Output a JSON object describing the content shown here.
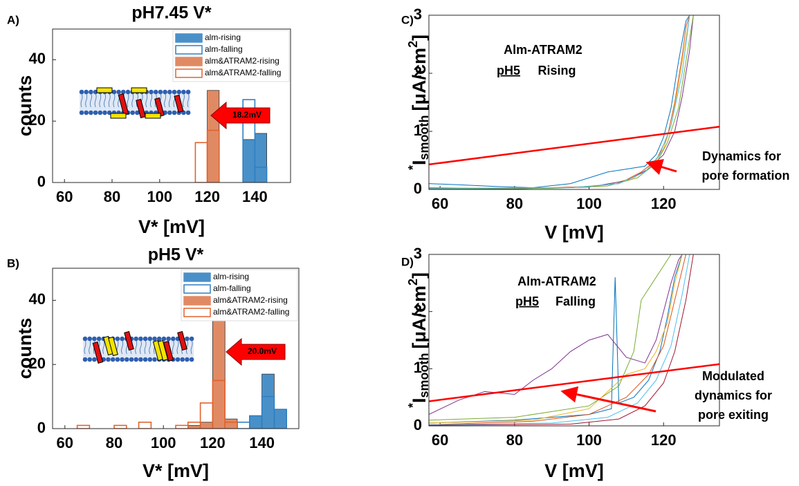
{
  "chart_data": [
    {
      "type": "histogram",
      "panel_label": "A)",
      "title": "pH7.45 V*",
      "xlabel": "V* [mV]",
      "ylabel": "counts",
      "bins": [
        60,
        65,
        70,
        75,
        80,
        85,
        90,
        95,
        100,
        105,
        110,
        115,
        120,
        125,
        130,
        135,
        140,
        145,
        150
      ],
      "xlim": [
        55,
        155
      ],
      "ylim": [
        0,
        50
      ],
      "xticks": [
        60,
        80,
        100,
        120,
        140
      ],
      "yticks": [
        0,
        20,
        40
      ],
      "legend": "top-right",
      "series": [
        {
          "name": "alm-rising",
          "color": "#4a90c8",
          "filled": true,
          "values": [
            0,
            0,
            0,
            0,
            0,
            0,
            0,
            0,
            0,
            0,
            0,
            0,
            0,
            0,
            0,
            14,
            16,
            0
          ]
        },
        {
          "name": "alm-falling",
          "color": "#2f7fc1",
          "filled": false,
          "values": [
            0,
            0,
            0,
            0,
            0,
            0,
            0,
            0,
            0,
            0,
            0,
            0,
            0,
            0,
            0,
            27,
            5,
            0
          ]
        },
        {
          "name": "alm&ATRAM2-rising",
          "color": "#e08a64",
          "filled": true,
          "values": [
            0,
            0,
            0,
            0,
            0,
            0,
            0,
            0,
            0,
            0,
            0,
            0,
            30,
            0,
            0,
            0,
            0,
            0
          ]
        },
        {
          "name": "alm&ATRAM2-falling",
          "color": "#e0622c",
          "filled": false,
          "values": [
            0,
            0,
            0,
            0,
            0,
            0,
            0,
            0,
            0,
            0,
            0,
            13,
            17,
            0,
            0,
            0,
            0,
            0
          ]
        }
      ],
      "annotations": [
        "18.2mV"
      ]
    },
    {
      "type": "histogram",
      "panel_label": "B)",
      "title": "pH5 V*",
      "xlabel": "V* [mV]",
      "ylabel": "counts",
      "bins": [
        60,
        65,
        70,
        75,
        80,
        85,
        90,
        95,
        100,
        105,
        110,
        115,
        120,
        125,
        130,
        135,
        140,
        145,
        150
      ],
      "xlim": [
        55,
        155
      ],
      "ylim": [
        0,
        50
      ],
      "xticks": [
        60,
        80,
        100,
        120,
        140
      ],
      "yticks": [
        0,
        20,
        40
      ],
      "legend": "top-right",
      "series": [
        {
          "name": "alm-rising",
          "color": "#4a90c8",
          "filled": true,
          "values": [
            0,
            0,
            0,
            0,
            0,
            0,
            0,
            0,
            0,
            0,
            0,
            0,
            0,
            0,
            0,
            4,
            17,
            6
          ]
        },
        {
          "name": "alm-falling",
          "color": "#2f7fc1",
          "filled": false,
          "values": [
            0,
            0,
            0,
            0,
            0,
            0,
            0,
            0,
            0,
            0,
            0,
            0,
            0,
            2,
            2,
            4,
            10,
            6
          ]
        },
        {
          "name": "alm&ATRAM2-rising",
          "color": "#e08a64",
          "filled": true,
          "values": [
            0,
            0,
            0,
            0,
            0,
            0,
            0,
            0,
            0,
            0,
            1,
            2,
            34,
            3,
            0,
            0,
            0,
            0
          ]
        },
        {
          "name": "alm&ATRAM2-falling",
          "color": "#e0622c",
          "filled": false,
          "values": [
            0,
            1,
            0,
            0,
            1,
            0,
            2,
            0,
            0,
            1,
            2,
            8,
            15,
            2,
            0,
            0,
            0,
            0
          ]
        }
      ],
      "annotations": [
        "20.0mV"
      ]
    },
    {
      "type": "line",
      "panel_label": "C)",
      "xlabel": "V [mV]",
      "ylabel_parts": [
        "*",
        "I",
        "smooth",
        "[μA/cm",
        "2",
        "]"
      ],
      "xlim": [
        57,
        135
      ],
      "ylim": [
        0,
        3
      ],
      "xticks": [
        60,
        80,
        100,
        120
      ],
      "yticks": [
        0,
        1,
        2,
        3
      ],
      "annotations": [
        "Alm-ATRAM2",
        "pH5",
        "Rising",
        "Dynamics for",
        "pore formation"
      ],
      "series": [
        {
          "color": "#0072bd",
          "x": [
            57,
            65,
            75,
            85,
            95,
            105,
            110,
            115,
            118,
            120,
            122,
            124,
            126,
            127
          ],
          "values": [
            0.1,
            0.08,
            0.05,
            0.03,
            0.1,
            0.3,
            0.35,
            0.4,
            0.6,
            0.9,
            1.4,
            2.2,
            2.9,
            3
          ]
        },
        {
          "color": "#d95319",
          "x": [
            57,
            70,
            85,
            100,
            108,
            114,
            118,
            121,
            123,
            125,
            126,
            127
          ],
          "values": [
            0.03,
            0.02,
            0.02,
            0.05,
            0.1,
            0.3,
            0.5,
            0.9,
            1.5,
            2.3,
            2.8,
            3
          ]
        },
        {
          "color": "#edb120",
          "x": [
            57,
            75,
            95,
            105,
            112,
            117,
            120,
            122,
            124,
            126,
            127
          ],
          "values": [
            0.02,
            0.01,
            0.03,
            0.08,
            0.2,
            0.4,
            0.7,
            1.1,
            1.8,
            2.6,
            3
          ]
        },
        {
          "color": "#7e2f8e",
          "x": [
            57,
            80,
            100,
            110,
            116,
            120,
            123,
            125,
            127,
            128
          ],
          "values": [
            0.01,
            0.01,
            0.04,
            0.15,
            0.35,
            0.6,
            1,
            1.6,
            2.4,
            3
          ]
        },
        {
          "color": "#77ac30",
          "x": [
            57,
            90,
            105,
            113,
            118,
            121,
            124,
            126,
            128
          ],
          "values": [
            0.01,
            0.02,
            0.06,
            0.2,
            0.45,
            0.8,
            1.4,
            2.2,
            3
          ]
        },
        {
          "color": "#4dbeee",
          "x": [
            57,
            95,
            108,
            115,
            119,
            122,
            125,
            127
          ],
          "values": [
            0.02,
            0.03,
            0.1,
            0.3,
            0.6,
            1.1,
            2,
            3
          ]
        },
        {
          "color": "#ff0000",
          "x": [
            57,
            135
          ],
          "values": [
            0.43,
            1.08
          ]
        }
      ]
    },
    {
      "type": "line",
      "panel_label": "D)",
      "xlabel": "V [mV]",
      "ylabel_parts": [
        "*",
        "I",
        "smooth",
        "[μA/cm",
        "2",
        "]"
      ],
      "xlim": [
        57,
        135
      ],
      "ylim": [
        0,
        3
      ],
      "xticks": [
        60,
        80,
        100,
        120
      ],
      "yticks": [
        0,
        1,
        2,
        3
      ],
      "annotations": [
        "Alm-ATRAM2",
        "pH5",
        "Falling",
        "Modulated",
        "dynamics for",
        "pore exiting"
      ],
      "series": [
        {
          "color": "#7e2f8e",
          "x": [
            57,
            65,
            72,
            80,
            85,
            90,
            95,
            100,
            105,
            110,
            115,
            118,
            120,
            122,
            124,
            125
          ],
          "values": [
            0.2,
            0.45,
            0.6,
            0.55,
            0.8,
            1,
            1.3,
            1.5,
            1.6,
            1.2,
            1.1,
            1.5,
            2,
            2.5,
            2.9,
            3
          ]
        },
        {
          "color": "#0072bd",
          "x": [
            57,
            80,
            100,
            106,
            107,
            108,
            112,
            116,
            119,
            121,
            123,
            125
          ],
          "values": [
            0.05,
            0.1,
            0.2,
            0.3,
            2.6,
            0.4,
            0.5,
            0.8,
            1.3,
            1.9,
            2.6,
            3
          ]
        },
        {
          "color": "#77ac30",
          "x": [
            57,
            80,
            100,
            108,
            112,
            114,
            117,
            120,
            122
          ],
          "values": [
            0.1,
            0.15,
            0.35,
            0.7,
            1.3,
            2.2,
            2.5,
            2.8,
            3
          ]
        },
        {
          "color": "#edb120",
          "x": [
            57,
            85,
            100,
            110,
            115,
            118,
            121,
            123,
            125
          ],
          "values": [
            0.05,
            0.1,
            0.3,
            0.9,
            1,
            1.3,
            1.8,
            2.5,
            3
          ]
        },
        {
          "color": "#d95319",
          "x": [
            57,
            85,
            100,
            110,
            116,
            120,
            123,
            126
          ],
          "values": [
            0.02,
            0.08,
            0.2,
            0.5,
            0.9,
            1.4,
            2.2,
            3
          ]
        },
        {
          "color": "#4dbeee",
          "x": [
            57,
            90,
            105,
            113,
            118,
            122,
            125,
            127
          ],
          "values": [
            0.02,
            0.05,
            0.15,
            0.4,
            0.8,
            1.4,
            2.3,
            3
          ]
        },
        {
          "color": "#a2142f",
          "x": [
            57,
            95,
            108,
            115,
            120,
            123,
            126,
            128
          ],
          "values": [
            0.01,
            0.03,
            0.12,
            0.35,
            0.75,
            1.3,
            2.2,
            3
          ]
        },
        {
          "color": "#ff0000",
          "x": [
            57,
            135
          ],
          "values": [
            0.43,
            1.08
          ]
        }
      ]
    }
  ]
}
